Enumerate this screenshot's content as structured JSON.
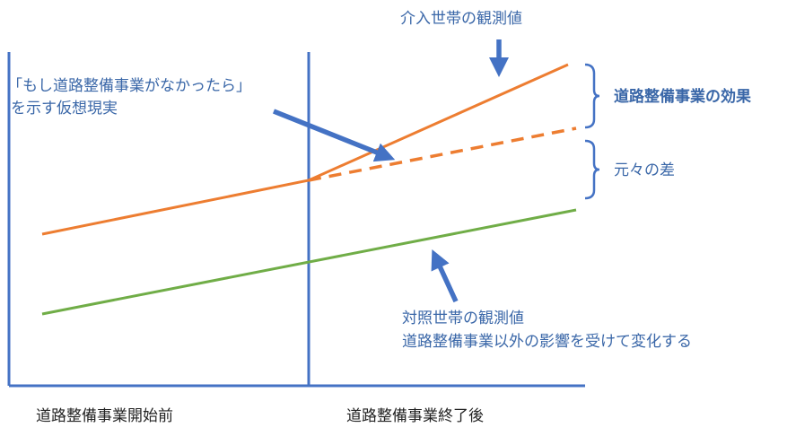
{
  "colors": {
    "axis": "#4472c4",
    "intervention": "#ed7d31",
    "control": "#70ad47",
    "annotation": "#3a67a8",
    "period_text": "#222222"
  },
  "labels": {
    "intervention_observed": "介入世帯の観測値",
    "counterfactual_line1": "「もし道路整備事業がなかったら」",
    "counterfactual_line2": "を示す仮想現実",
    "effect": "道路整備事業の効果",
    "original_difference": "元々の差",
    "control_line1": "対照世帯の観測値",
    "control_line2": "道路整備事業以外の影響を受けて変化する"
  },
  "periods": {
    "before": "道路整備事業開始前",
    "after": "道路整備事業終了後"
  },
  "icons": {
    "arrows": [
      "arrow-down-icon",
      "arrow-diagonal-icon",
      "arrow-up-icon"
    ],
    "braces": [
      "bracket-right-icon"
    ]
  }
}
